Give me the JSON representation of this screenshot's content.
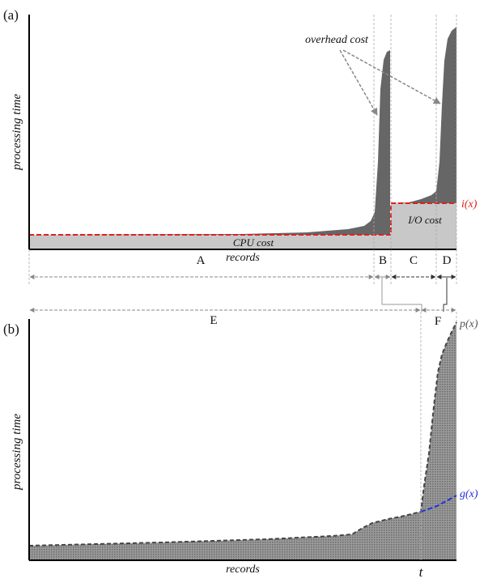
{
  "figure": {
    "panel_a": {
      "tag": "(a)",
      "ylabel": "processing time",
      "xlabel": "records",
      "annotation": "overhead cost",
      "label_cpu": "CPU cost",
      "label_io": "I/O cost",
      "label_ix": "i(x)",
      "regions": [
        "A",
        "B",
        "C",
        "D"
      ],
      "colors": {
        "overhead_fill": "#666666",
        "cost_fill": "#c8c8c8",
        "ix_line": "#e0201c"
      }
    },
    "panel_b": {
      "tag": "(b)",
      "ylabel": "processing time",
      "xlabel": "records",
      "threshold": "t",
      "label_px": "p(x)",
      "label_gx": "g(x)",
      "regions": [
        "E",
        "F"
      ],
      "colors": {
        "area_fill": "#8a8a8a",
        "gx_line": "#2030d8",
        "px_line": "#444444"
      }
    }
  }
}
